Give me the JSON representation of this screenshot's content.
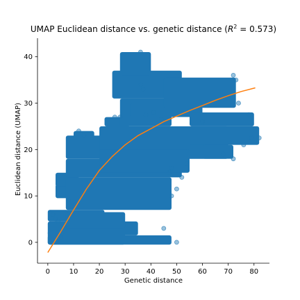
{
  "chart_data": {
    "type": "scatter",
    "title": "UMAP Euclidean distance vs. genetic distance (R² = 0.573)",
    "title_parts": {
      "prefix": "UMAP Euclidean distance vs. genetic distance (",
      "r2_symbol": "R",
      "r2_exp": "2",
      "r2_value": " = 0.573)"
    },
    "xlabel": "Genetic distance",
    "ylabel": "Euclidean distance (UMAP)",
    "xlim": [
      -4,
      86
    ],
    "ylim": [
      -4.5,
      44
    ],
    "xticks": [
      0,
      10,
      20,
      30,
      40,
      50,
      60,
      70,
      80
    ],
    "yticks": [
      0,
      10,
      20,
      30,
      40
    ],
    "grid": false,
    "legend": "none",
    "scatter_color": "#1f77b4",
    "fit_color": "#ff7f0e",
    "scatter_regions": [
      {
        "x": [
          0,
          30
        ],
        "y": [
          -0.5,
          2.5
        ]
      },
      {
        "x": [
          0,
          48
        ],
        "y": [
          -0.5,
          1.5
        ]
      },
      {
        "x": [
          0,
          35
        ],
        "y": [
          1.5,
          4.5
        ]
      },
      {
        "x": [
          0,
          22
        ],
        "y": [
          4.5,
          7
        ]
      },
      {
        "x": [
          7,
          30
        ],
        "y": [
          3,
          6.5
        ]
      },
      {
        "x": [
          3,
          18
        ],
        "y": [
          9.5,
          12.5
        ]
      },
      {
        "x": [
          3,
          12
        ],
        "y": [
          12,
          15
        ]
      },
      {
        "x": [
          7,
          48
        ],
        "y": [
          7,
          14
        ]
      },
      {
        "x": [
          7,
          52
        ],
        "y": [
          14,
          18
        ]
      },
      {
        "x": [
          7,
          25
        ],
        "y": [
          18,
          23
        ]
      },
      {
        "x": [
          10,
          18
        ],
        "y": [
          22,
          24
        ]
      },
      {
        "x": [
          20,
          70
        ],
        "y": [
          18,
          25
        ]
      },
      {
        "x": [
          20,
          55
        ],
        "y": [
          15,
          20
        ]
      },
      {
        "x": [
          22,
          32
        ],
        "y": [
          25,
          27
        ]
      },
      {
        "x": [
          28,
          48
        ],
        "y": [
          25,
          31
        ]
      },
      {
        "x": [
          25,
          52
        ],
        "y": [
          31,
          37
        ]
      },
      {
        "x": [
          28,
          40
        ],
        "y": [
          36,
          41
        ]
      },
      {
        "x": [
          32,
          60
        ],
        "y": [
          27,
          30
        ]
      },
      {
        "x": [
          45,
          73
        ],
        "y": [
          29,
          35.5
        ]
      },
      {
        "x": [
          55,
          80
        ],
        "y": [
          25,
          28
        ]
      },
      {
        "x": [
          55,
          82
        ],
        "y": [
          21,
          25
        ]
      },
      {
        "x": [
          60,
          72
        ],
        "y": [
          18,
          21
        ]
      }
    ],
    "outliers": [
      {
        "x": 2,
        "y": 6
      },
      {
        "x": 3,
        "y": 5
      },
      {
        "x": 4,
        "y": 4.5
      },
      {
        "x": 5,
        "y": 1
      },
      {
        "x": 8,
        "y": 9
      },
      {
        "x": 12,
        "y": 24
      },
      {
        "x": 14,
        "y": 23
      },
      {
        "x": 26,
        "y": 27
      },
      {
        "x": 28,
        "y": 27
      },
      {
        "x": 36,
        "y": 34
      },
      {
        "x": 37,
        "y": 33
      },
      {
        "x": 38,
        "y": 27.5
      },
      {
        "x": 41,
        "y": 28
      },
      {
        "x": 44,
        "y": 26.5
      },
      {
        "x": 45,
        "y": 3
      },
      {
        "x": 47,
        "y": 15
      },
      {
        "x": 48,
        "y": 10
      },
      {
        "x": 48,
        "y": 16
      },
      {
        "x": 50,
        "y": 0
      },
      {
        "x": 50,
        "y": 11.5
      },
      {
        "x": 52,
        "y": 14
      },
      {
        "x": 54,
        "y": 17
      },
      {
        "x": 60,
        "y": 26
      },
      {
        "x": 68,
        "y": 19
      },
      {
        "x": 72,
        "y": 18
      },
      {
        "x": 76,
        "y": 21
      },
      {
        "x": 78,
        "y": 27.5
      },
      {
        "x": 79,
        "y": 22.5
      },
      {
        "x": 82,
        "y": 22.5
      },
      {
        "x": 73,
        "y": 35
      },
      {
        "x": 72,
        "y": 36
      },
      {
        "x": 74,
        "y": 30
      },
      {
        "x": 36,
        "y": 41
      }
    ],
    "fit_line": {
      "x": [
        0,
        5,
        10,
        15,
        20,
        25,
        30,
        35,
        40,
        45,
        50,
        55,
        60,
        65,
        70,
        75,
        80.5
      ],
      "y": [
        -2.2,
        2.3,
        7.0,
        11.5,
        15.5,
        18.5,
        21.0,
        23.0,
        24.5,
        26.0,
        27.2,
        28.4,
        29.5,
        30.6,
        31.6,
        32.5,
        33.3
      ]
    }
  }
}
